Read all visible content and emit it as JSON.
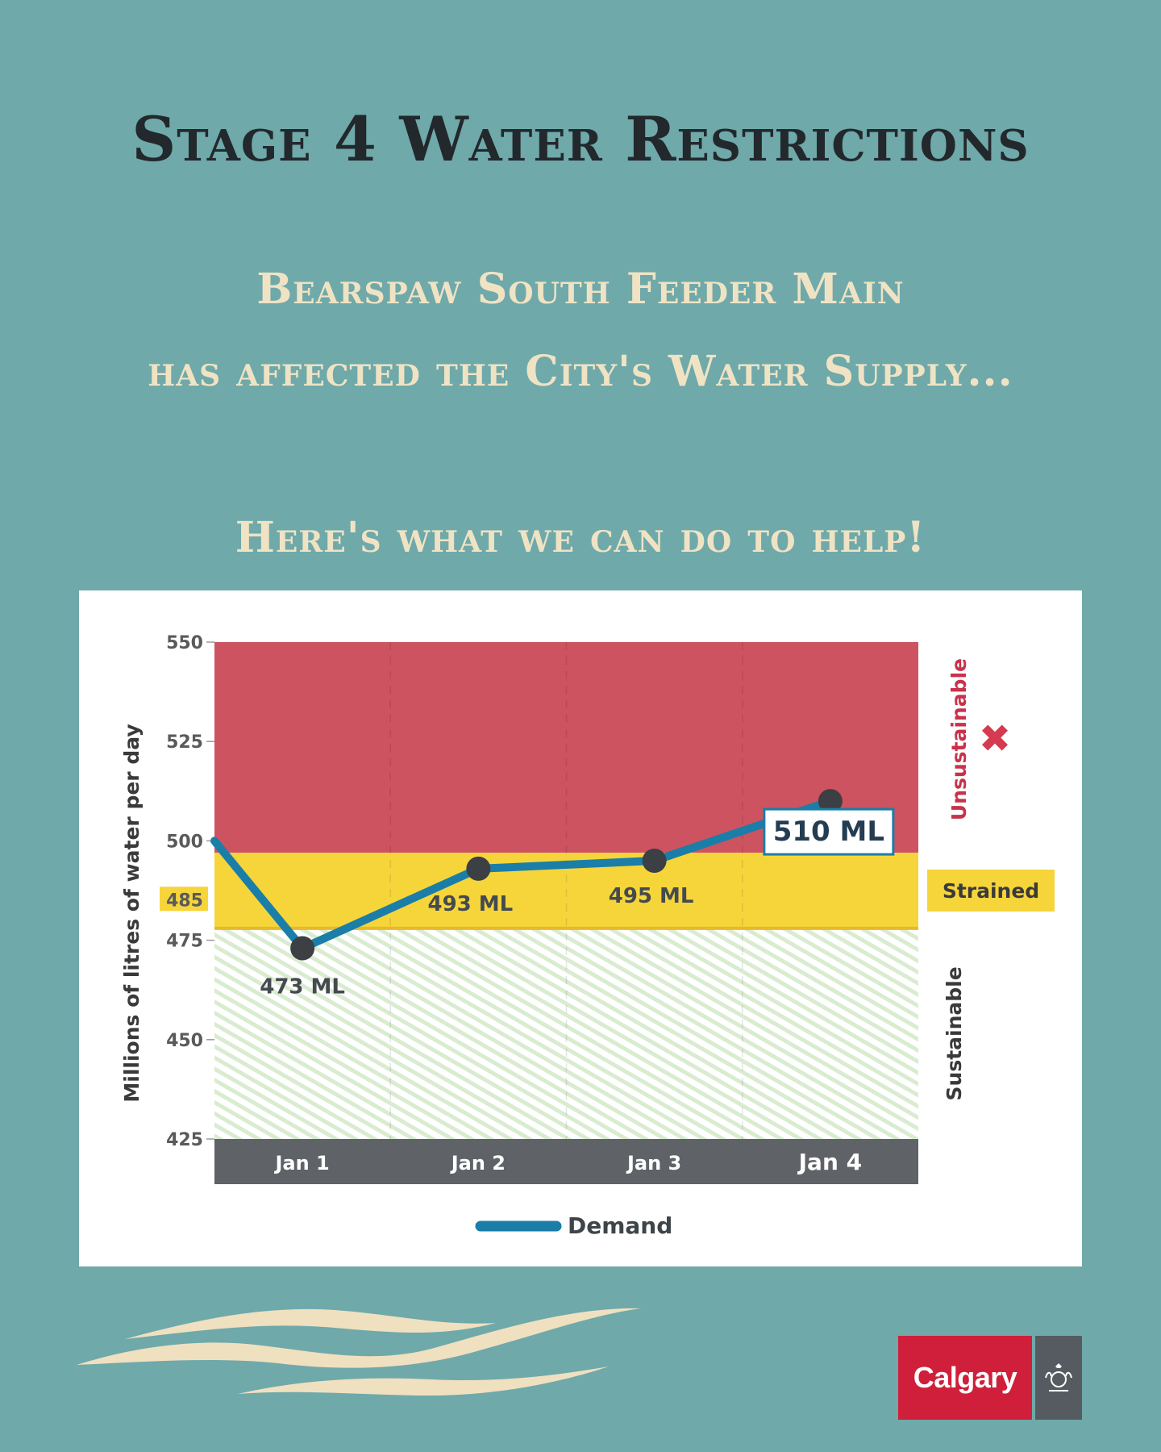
{
  "header": {
    "title": "Stage 4 Water Restrictions",
    "subtitle_line1": "Bearspaw South Feeder Main",
    "subtitle_line2": "has affected the City's Water Supply...",
    "call_to_action": "Here's what we can do to help!"
  },
  "chart_data": {
    "type": "line",
    "categories": [
      "Jan 1",
      "Jan 2",
      "Jan 3",
      "Jan 4"
    ],
    "x_note": "",
    "series": [
      {
        "name": "Demand",
        "color": "#1a7ea8",
        "start_value": 500,
        "points": [
          {
            "x": "Jan 1",
            "y": 473,
            "label": "473 ML"
          },
          {
            "x": "Jan 2",
            "y": 493,
            "label": "493 ML"
          },
          {
            "x": "Jan 3",
            "y": 495,
            "label": "495 ML"
          },
          {
            "x": "Jan 4",
            "y": 510,
            "label": "510 ML"
          }
        ]
      }
    ],
    "ylabel": "Millions of litres of water per day",
    "xlabel": "",
    "ylim": [
      425,
      550
    ],
    "yticks": [
      425,
      450,
      475,
      500,
      525,
      550
    ],
    "highlight_tick": 485,
    "zones": [
      {
        "name": "Unsustainable",
        "from": 497,
        "to": 550,
        "color": "#cd5360",
        "marker": "✖"
      },
      {
        "name": "Strained",
        "from": 478,
        "to": 497,
        "color": "#f6d53b"
      },
      {
        "name": "Sustainable",
        "from": 425,
        "to": 478,
        "color": "#d9ecd0"
      }
    ],
    "legend": {
      "position": "bottom-center",
      "label": "Demand"
    }
  },
  "branding": {
    "logo_text": "Calgary"
  }
}
